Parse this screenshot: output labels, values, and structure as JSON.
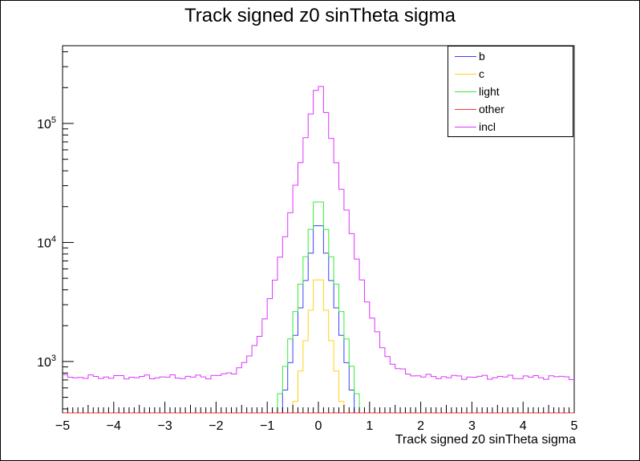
{
  "chart_data": {
    "type": "line",
    "title": "Track signed z0 sinTheta sigma",
    "xlabel": "Track signed z0 sinTheta sigma",
    "ylabel": "",
    "xlim": [
      -5,
      5
    ],
    "ylim": [
      370,
      450000
    ],
    "yscale": "log",
    "grid": false,
    "legend_position": "top-right",
    "x_ticks": [
      "-5",
      "-4",
      "-3",
      "-2",
      "-1",
      "0",
      "1",
      "2",
      "3",
      "4",
      "5"
    ],
    "y_ticks": [
      {
        "base": "10",
        "exp": "3",
        "value": 1000
      },
      {
        "base": "10",
        "exp": "4",
        "value": 10000
      },
      {
        "base": "10",
        "exp": "5",
        "value": 100000
      }
    ],
    "bin_width": 0.1,
    "series": [
      {
        "name": "b",
        "color": "#3f3fff",
        "shape": "triangle",
        "peak": 18000,
        "slope": 2.3,
        "flat": 0
      },
      {
        "name": "c",
        "color": "#ffd11a",
        "shape": "triangle",
        "peak": 6500,
        "slope": 2.55,
        "flat": 0
      },
      {
        "name": "light",
        "color": "#33ee33",
        "shape": "triangle",
        "peak": 28500,
        "slope": 2.3,
        "flat": 0
      },
      {
        "name": "other",
        "color": "#ff3333",
        "shape": "flat",
        "peak": 0,
        "slope": 0,
        "flat": 0
      },
      {
        "name": "incl",
        "color": "#dd33ff",
        "shape": "incl",
        "peak": 250000,
        "slope": 2.1,
        "flat": 740
      }
    ]
  }
}
